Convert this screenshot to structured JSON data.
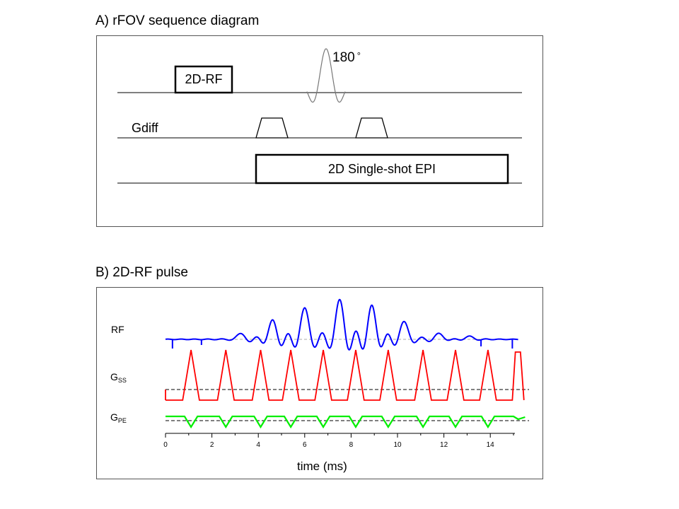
{
  "panel_a": {
    "title": "A) rFOV sequence diagram",
    "rf_box_label": "2D-RF",
    "rf180_label": "180",
    "degree_symbol": "°",
    "gdiff_label": "Gdiff",
    "epi_label": "2D Single-shot EPI"
  },
  "panel_b": {
    "title": "B) 2D-RF pulse",
    "rf_label": "RF",
    "gss_label_main": "G",
    "gss_label_sub": "SS",
    "gpe_label_main": "G",
    "gpe_label_sub": "PE",
    "xlabel": "time (ms)",
    "x_ticks": [
      "0",
      "2",
      "4",
      "6",
      "8",
      "10",
      "12",
      "14"
    ]
  },
  "chart_data": {
    "type": "line",
    "xlabel": "time (ms)",
    "xlim": [
      0,
      15.5
    ],
    "x_ticks": [
      0,
      2,
      4,
      6,
      8,
      10,
      12,
      14
    ],
    "series": [
      {
        "name": "RF",
        "color": "#0000ff",
        "peak_times_ms": [
          3.2,
          4.6,
          6.0,
          7.5,
          8.9,
          10.3,
          11.8,
          13.1
        ],
        "peak_relative_amplitudes": [
          0.15,
          0.45,
          0.8,
          1.0,
          0.8,
          0.45,
          0.15,
          0.08
        ]
      },
      {
        "name": "GSS",
        "color": "#ff0000",
        "peak_times_ms": [
          1.1,
          2.6,
          4.1,
          5.4,
          6.8,
          8.2,
          9.6,
          11.1,
          12.5,
          13.9,
          15.2
        ]
      },
      {
        "name": "GPE",
        "color": "#00ee00",
        "blip_times_ms": [
          1.1,
          2.6,
          4.1,
          5.4,
          6.8,
          8.2,
          9.6,
          11.1,
          12.5,
          13.9
        ]
      }
    ]
  }
}
